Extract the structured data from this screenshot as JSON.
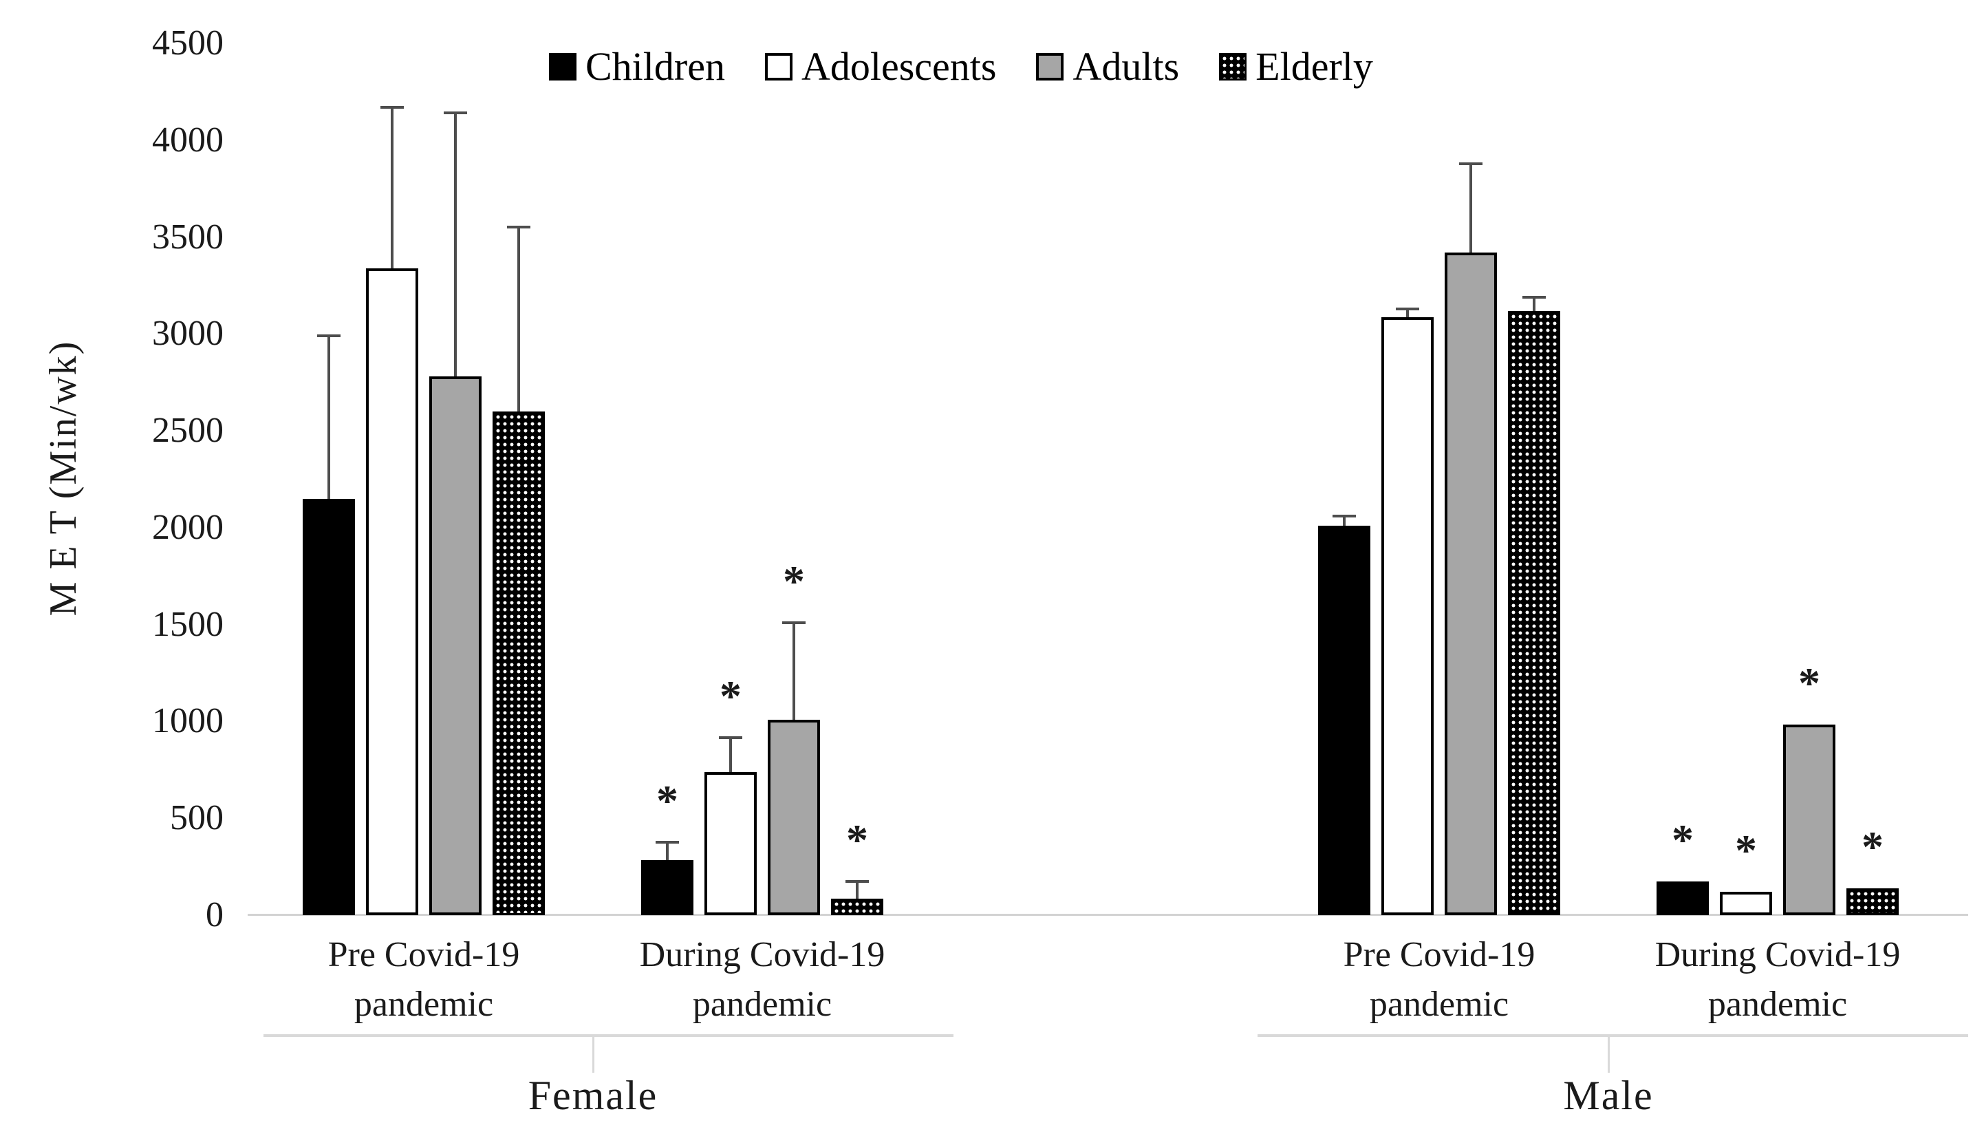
{
  "chart_data": {
    "type": "bar",
    "title": "",
    "ylabel": "M E T (Min/wk)",
    "ylim": [
      0,
      4500
    ],
    "ytick_step": 500,
    "yticks": [
      0,
      500,
      1000,
      1500,
      2000,
      2500,
      3000,
      3500,
      4000,
      4500
    ],
    "grid": false,
    "legend_position": "top-center",
    "significance_marker": "*",
    "series": [
      {
        "name": "Children",
        "fill": "black"
      },
      {
        "name": "Adolescents",
        "fill": "white"
      },
      {
        "name": "Adults",
        "fill": "gray"
      },
      {
        "name": "Elderly",
        "fill": "dotted"
      }
    ],
    "groups": [
      {
        "label": "Female",
        "categories": [
          {
            "label_lines": [
              "Pre Covid-19",
              "pandemic"
            ],
            "bars": [
              {
                "series": "Children",
                "value": 2150,
                "error_top": 2990,
                "significant": false
              },
              {
                "series": "Adolescents",
                "value": 3340,
                "error_top": 4170,
                "significant": false
              },
              {
                "series": "Adults",
                "value": 2780,
                "error_top": 4140,
                "significant": false
              },
              {
                "series": "Elderly",
                "value": 2600,
                "error_top": 3550,
                "significant": false
              }
            ]
          },
          {
            "label_lines": [
              "During Covid-19",
              "pandemic"
            ],
            "bars": [
              {
                "series": "Children",
                "value": 285,
                "error_top": 375,
                "significant": true
              },
              {
                "series": "Adolescents",
                "value": 740,
                "error_top": 915,
                "significant": true
              },
              {
                "series": "Adults",
                "value": 1010,
                "error_top": 1510,
                "significant": true
              },
              {
                "series": "Elderly",
                "value": 85,
                "error_top": 175,
                "significant": true
              }
            ]
          }
        ]
      },
      {
        "label": "Male",
        "categories": [
          {
            "label_lines": [
              "Pre Covid-19",
              "pandemic"
            ],
            "bars": [
              {
                "series": "Children",
                "value": 2010,
                "error_top": 2060,
                "significant": false
              },
              {
                "series": "Adolescents",
                "value": 3085,
                "error_top": 3130,
                "significant": false
              },
              {
                "series": "Adults",
                "value": 3420,
                "error_top": 3880,
                "significant": false
              },
              {
                "series": "Elderly",
                "value": 3120,
                "error_top": 3190,
                "significant": false
              }
            ]
          },
          {
            "label_lines": [
              "During Covid-19",
              "pandemic"
            ],
            "bars": [
              {
                "series": "Children",
                "value": 175,
                "error_top": null,
                "significant": true
              },
              {
                "series": "Adolescents",
                "value": 120,
                "error_top": null,
                "significant": true
              },
              {
                "series": "Adults",
                "value": 985,
                "error_top": null,
                "significant": true
              },
              {
                "series": "Elderly",
                "value": 140,
                "error_top": null,
                "significant": true
              }
            ]
          }
        ]
      }
    ],
    "colors": {
      "black": "#000000",
      "white": "#ffffff",
      "gray": "#a6a6a6",
      "dotted_background": "#000000",
      "dotted_dot": "#ffffff",
      "error_bar": "#4d4d4d",
      "axis_line": "#d9d9d9",
      "text": "#1a1a1a"
    }
  }
}
